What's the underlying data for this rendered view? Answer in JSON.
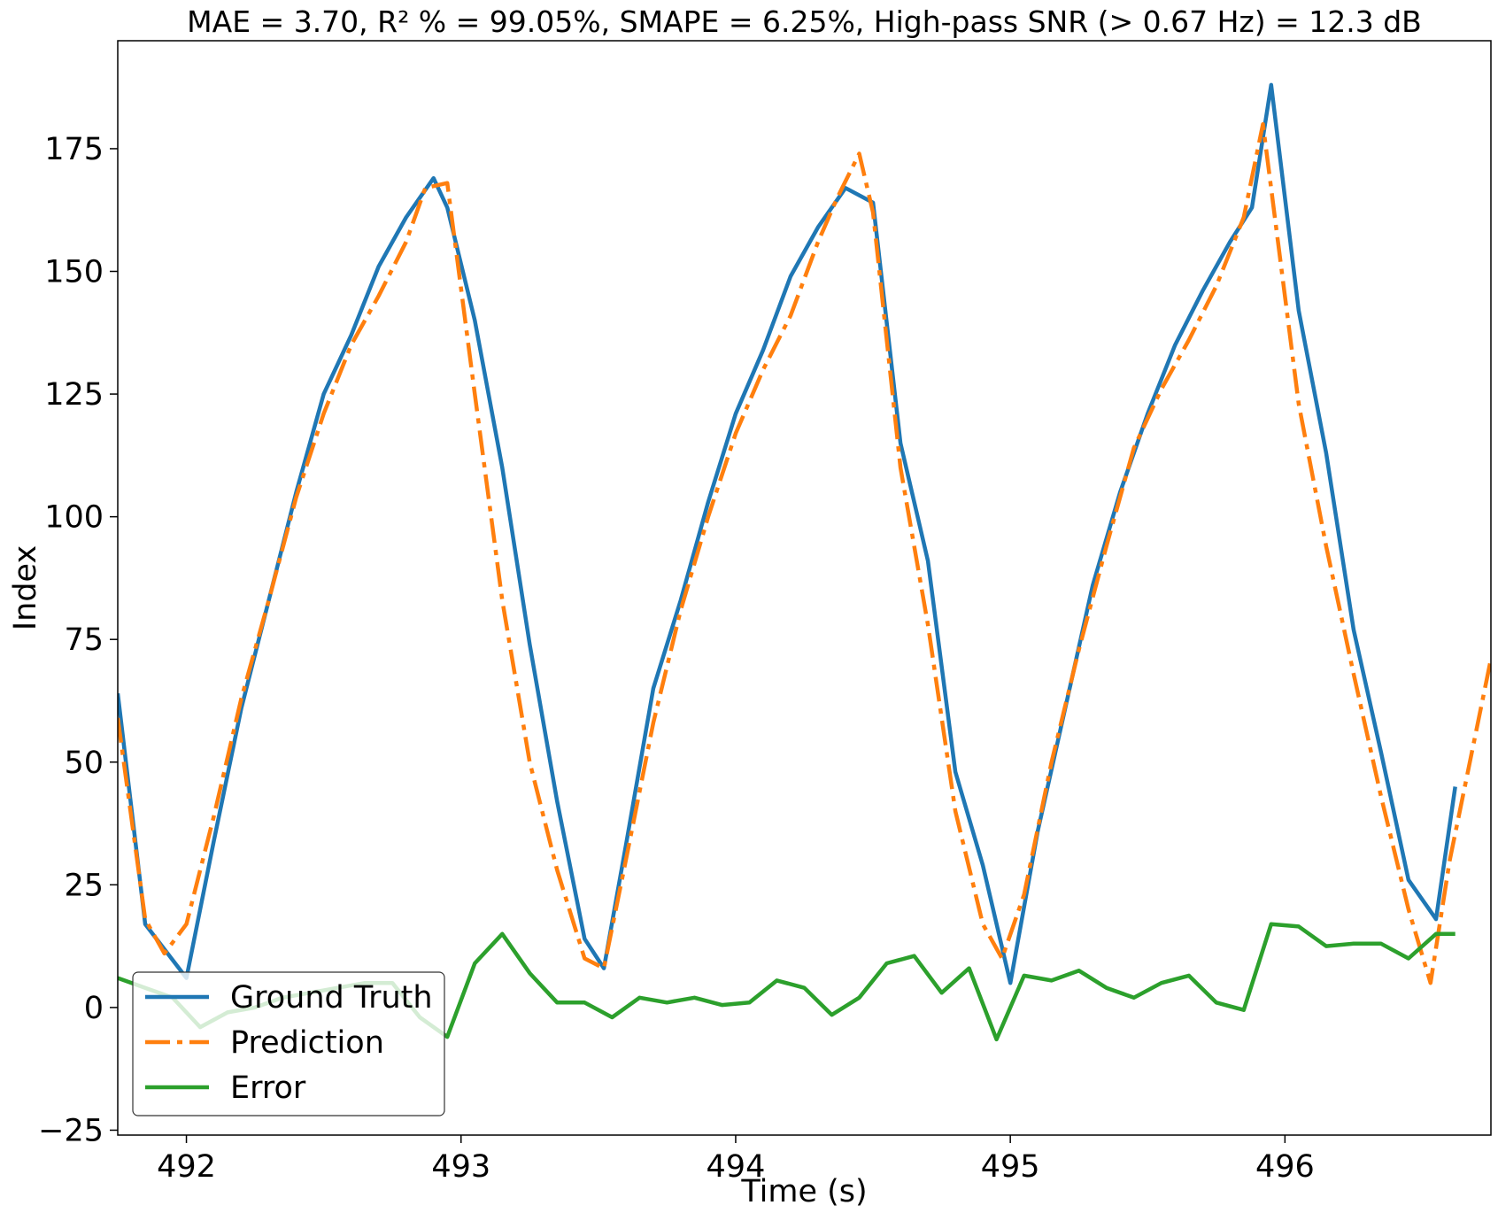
{
  "chart_data": {
    "type": "line",
    "title": "MAE = 3.70, R² % = 99.05%, SMAPE = 6.25%, High-pass SNR (> 0.67 Hz) = 12.3 dB",
    "xlabel": "Time (s)",
    "ylabel": "Index",
    "xlim": [
      491.75,
      496.75
    ],
    "ylim": [
      -26,
      197
    ],
    "xticks": [
      492,
      493,
      494,
      495,
      496
    ],
    "yticks": [
      -25,
      0,
      25,
      50,
      75,
      100,
      125,
      150,
      175
    ],
    "grid": false,
    "legend_position": "lower left",
    "series": [
      {
        "name": "Ground Truth",
        "color": "#1f77b4",
        "style": "solid",
        "x": [
          491.75,
          491.85,
          492.0,
          492.1,
          492.2,
          492.3,
          492.4,
          492.5,
          492.6,
          492.7,
          492.8,
          492.9,
          492.95,
          493.05,
          493.15,
          493.25,
          493.35,
          493.45,
          493.52,
          493.6,
          493.7,
          493.8,
          493.9,
          494.0,
          494.1,
          494.2,
          494.3,
          494.4,
          494.5,
          494.6,
          494.7,
          494.8,
          494.9,
          495.0,
          495.1,
          495.2,
          495.3,
          495.4,
          495.5,
          495.6,
          495.7,
          495.8,
          495.88,
          495.95,
          496.05,
          496.15,
          496.25,
          496.35,
          496.45,
          496.55,
          496.62
        ],
        "values": [
          64,
          17,
          6,
          34,
          61,
          83,
          105,
          125,
          137,
          151,
          161,
          169,
          163,
          140,
          110,
          74,
          42,
          14,
          8,
          33,
          65,
          83,
          103,
          121,
          134,
          149,
          159,
          167,
          164,
          115,
          91,
          48,
          29,
          5,
          36,
          61,
          86,
          105,
          121,
          135,
          146,
          156,
          163,
          188,
          142,
          113,
          77,
          52,
          26,
          18,
          45
        ]
      },
      {
        "name": "Prediction",
        "color": "#ff7f0e",
        "style": "dashdot",
        "x": [
          491.75,
          491.85,
          491.92,
          492.0,
          492.1,
          492.2,
          492.3,
          492.4,
          492.5,
          492.6,
          492.7,
          492.8,
          492.87,
          492.95,
          493.05,
          493.15,
          493.25,
          493.35,
          493.45,
          493.52,
          493.6,
          493.7,
          493.8,
          493.9,
          494.0,
          494.1,
          494.2,
          494.3,
          494.37,
          494.45,
          494.5,
          494.6,
          494.7,
          494.8,
          494.9,
          494.97,
          495.05,
          495.15,
          495.25,
          495.35,
          495.45,
          495.55,
          495.65,
          495.75,
          495.85,
          495.92,
          496.05,
          496.15,
          496.25,
          496.35,
          496.45,
          496.53,
          496.6,
          496.75
        ],
        "values": [
          59,
          18,
          11,
          17,
          39,
          63,
          83,
          104,
          121,
          135,
          145,
          156,
          167,
          168,
          125,
          83,
          50,
          28,
          10,
          8,
          30,
          58,
          81,
          100,
          117,
          130,
          141,
          156,
          165,
          174,
          162,
          110,
          78,
          40,
          17,
          10,
          23,
          50,
          73,
          94,
          114,
          126,
          136,
          147,
          161,
          180,
          123,
          94,
          68,
          43,
          20,
          5,
          30,
          71
        ]
      },
      {
        "name": "Error",
        "color": "#2ca02c",
        "style": "solid",
        "x": [
          491.75,
          491.85,
          491.95,
          492.05,
          492.15,
          492.25,
          492.35,
          492.45,
          492.55,
          492.65,
          492.75,
          492.85,
          492.95,
          493.05,
          493.15,
          493.25,
          493.35,
          493.45,
          493.55,
          493.65,
          493.75,
          493.85,
          493.95,
          494.05,
          494.15,
          494.25,
          494.35,
          494.45,
          494.55,
          494.65,
          494.75,
          494.85,
          494.95,
          495.05,
          495.15,
          495.25,
          495.35,
          495.45,
          495.55,
          495.65,
          495.75,
          495.85,
          495.95,
          496.05,
          496.15,
          496.25,
          496.35,
          496.45,
          496.55,
          496.62
        ],
        "values": [
          6,
          4,
          2,
          -4,
          -1,
          0,
          2,
          3,
          4,
          5,
          5,
          -2,
          -6,
          9,
          15,
          7,
          1,
          1,
          -2,
          2,
          1,
          2,
          0.5,
          1,
          5.5,
          4,
          -1.5,
          2,
          9,
          10.5,
          3,
          8,
          -6.5,
          6.5,
          5.5,
          7.5,
          4,
          2,
          5,
          6.5,
          1,
          -0.5,
          17,
          16.5,
          12.5,
          13,
          13,
          10,
          15,
          15
        ]
      }
    ]
  }
}
